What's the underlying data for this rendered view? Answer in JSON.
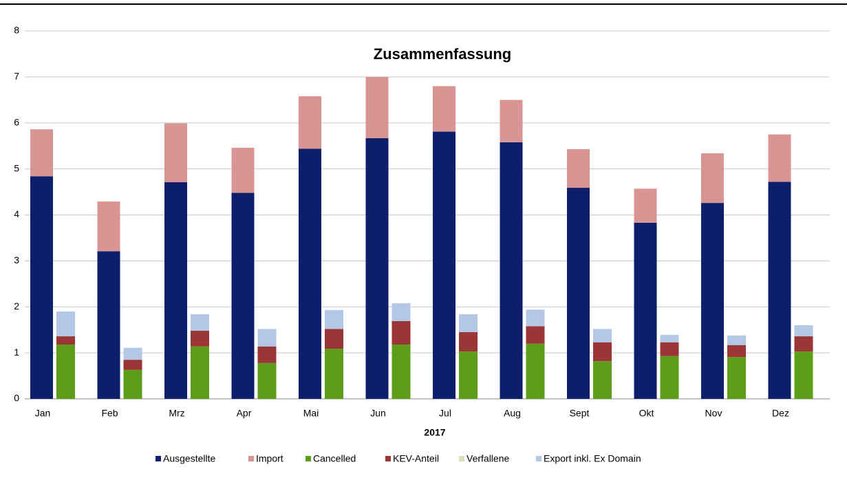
{
  "chart_data": {
    "type": "stacked_bar",
    "title": "Zusammenfassung",
    "x_label": "2017",
    "categories": [
      "Jan",
      "Feb",
      "Mrz",
      "Apr",
      "Mai",
      "Jun",
      "Jul",
      "Aug",
      "Sept",
      "Okt",
      "Nov",
      "Dez"
    ],
    "series": [
      {
        "name": "Ausgestellte",
        "color": "#0d1f6b",
        "stack": 1,
        "values": [
          4.84,
          3.21,
          4.71,
          4.48,
          5.44,
          5.67,
          5.81,
          5.58,
          4.59,
          3.83,
          4.26,
          4.72
        ]
      },
      {
        "name": "Import",
        "color": "#d99594",
        "stack": 1,
        "values": [
          1.02,
          1.08,
          1.28,
          0.98,
          1.14,
          1.33,
          0.99,
          0.92,
          0.84,
          0.74,
          1.08,
          1.03
        ]
      },
      {
        "name": "Cancelled",
        "color": "#5c9e17",
        "stack": 2,
        "values": [
          1.18,
          0.63,
          1.14,
          0.78,
          1.09,
          1.18,
          1.03,
          1.2,
          0.82,
          0.93,
          0.91,
          1.03
        ]
      },
      {
        "name": "KEV-Anteil",
        "color": "#9c3535",
        "stack": 2,
        "values": [
          0.18,
          0.22,
          0.34,
          0.36,
          0.43,
          0.51,
          0.42,
          0.38,
          0.41,
          0.3,
          0.26,
          0.33
        ]
      },
      {
        "name": "Verfallene",
        "color": "#d8e0bc",
        "stack": 2,
        "values": [
          0,
          0,
          0,
          0,
          0,
          0,
          0,
          0,
          0,
          0,
          0,
          0
        ]
      },
      {
        "name": "Export inkl. Ex Domain",
        "color": "#b4c7e7",
        "stack": 2,
        "values": [
          0.54,
          0.26,
          0.36,
          0.38,
          0.41,
          0.39,
          0.39,
          0.36,
          0.29,
          0.16,
          0.21,
          0.24
        ]
      }
    ],
    "ylim": [
      0,
      8
    ],
    "yticks": [
      0,
      1,
      2,
      3,
      4,
      5,
      6,
      7,
      8
    ],
    "grid": true,
    "legend": "bottom"
  }
}
